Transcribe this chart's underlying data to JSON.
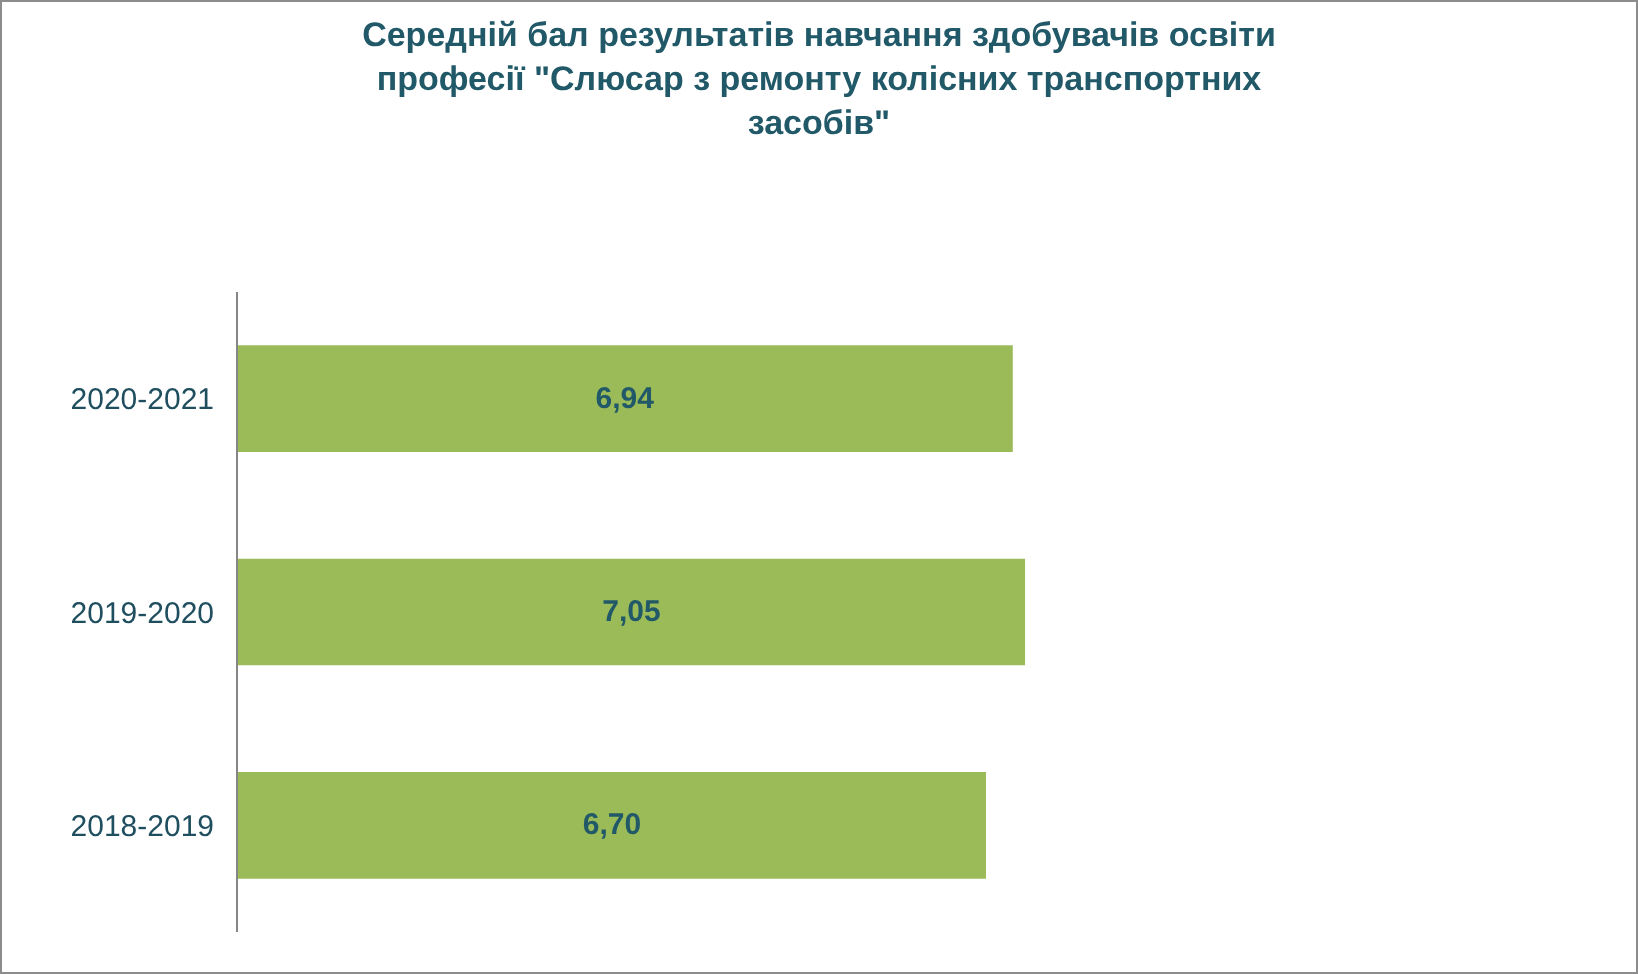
{
  "chart_data": {
    "type": "bar",
    "orientation": "horizontal",
    "title": "Середній бал результатів навчання здобувачів освіти професії \"Слюсар з ремонту колісних транспортних засобів\"",
    "categories": [
      "2020-2021",
      "2019-2020",
      "2018-2019"
    ],
    "values": [
      6.94,
      7.05,
      6.7
    ],
    "value_labels": [
      "6,94",
      "7,05",
      "6,70"
    ],
    "color": "#9bbb59",
    "grid": false,
    "legend": false
  }
}
